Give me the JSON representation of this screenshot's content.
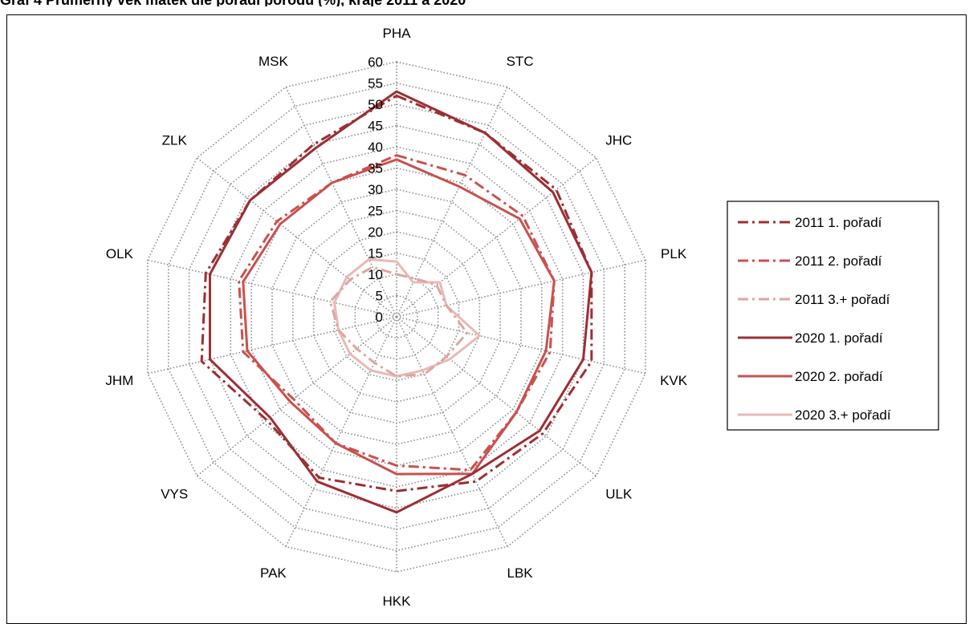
{
  "title": "Graf 4 Průměrný věk matek dle pořadí porodu (%), kraje 2011 a 2020",
  "chart_data": {
    "type": "radar",
    "title": "",
    "categories": [
      "PHA",
      "STC",
      "JHC",
      "PLK",
      "KVK",
      "ULK",
      "LBK",
      "HKK",
      "PAK",
      "VYS",
      "JHM",
      "OLK",
      "ZLK",
      "MSK"
    ],
    "rlim": [
      0,
      60
    ],
    "ticks": [
      0,
      5,
      10,
      15,
      20,
      25,
      30,
      35,
      40,
      45,
      50,
      55,
      60
    ],
    "grid": true,
    "legend_position": "right",
    "series": [
      {
        "name": "2011 1. pořadí",
        "color": "#9b2f35",
        "dash": "dashdot",
        "values": [
          52,
          48,
          48,
          47,
          47,
          44,
          43,
          41,
          42,
          39,
          47,
          46,
          44,
          45
        ]
      },
      {
        "name": "2011 2. pořadí",
        "color": "#c9514f",
        "dash": "dashdot",
        "values": [
          38,
          37,
          38,
          38,
          37,
          36,
          40,
          35,
          33,
          31,
          37,
          38,
          36,
          35
        ]
      },
      {
        "name": "2011 3.+ pořadí",
        "color": "#dea5a2",
        "dash": "dashdot",
        "values": [
          10,
          10,
          12,
          12,
          17,
          15,
          15,
          14,
          12,
          12,
          14,
          16,
          14,
          13
        ]
      },
      {
        "name": "2020 1. pořadí",
        "color": "#9b2f35",
        "dash": "solid",
        "values": [
          53,
          48,
          47,
          47,
          45,
          43,
          41,
          46,
          43,
          38,
          45,
          45,
          44,
          44
        ]
      },
      {
        "name": "2020 2. pořadí",
        "color": "#c9514f",
        "dash": "solid",
        "values": [
          37,
          34,
          37,
          38,
          36,
          36,
          41,
          37,
          33,
          32,
          36,
          37,
          35,
          35
        ]
      },
      {
        "name": "2020 3.+ pořadí",
        "color": "#e8b9b7",
        "dash": "solid",
        "values": [
          13,
          9,
          13,
          12,
          20,
          16,
          14,
          14,
          14,
          14,
          14,
          15,
          15,
          15
        ]
      }
    ]
  }
}
